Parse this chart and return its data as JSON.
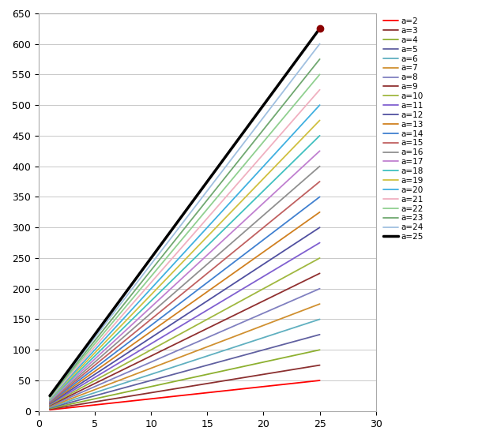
{
  "a_min": 2,
  "a_max": 25,
  "x_start": 1,
  "x_end": 25,
  "xlim": [
    0,
    30
  ],
  "ylim": [
    0,
    650
  ],
  "xticks": [
    0,
    5,
    10,
    15,
    20,
    25,
    30
  ],
  "yticks": [
    0,
    50,
    100,
    150,
    200,
    250,
    300,
    350,
    400,
    450,
    500,
    550,
    600,
    650
  ],
  "dot_x": 25,
  "dot_y": 625,
  "line_colors": {
    "2": "#ff0000",
    "3": "#8b3030",
    "4": "#8db030",
    "5": "#6060a0",
    "6": "#60b0c0",
    "7": "#d09030",
    "8": "#8080c0",
    "9": "#903030",
    "10": "#a0b840",
    "11": "#8060d0",
    "12": "#5050a0",
    "13": "#d08020",
    "14": "#4080d0",
    "15": "#c06060",
    "16": "#909090",
    "17": "#c080d0",
    "18": "#40c0c0",
    "19": "#d0c040",
    "20": "#40b0e0",
    "21": "#f0b0c0",
    "22": "#90d090",
    "23": "#70a870",
    "24": "#a0c0e0",
    "25": "#000000"
  },
  "line_widths": {
    "25": 2.5
  },
  "default_lw": 1.3
}
